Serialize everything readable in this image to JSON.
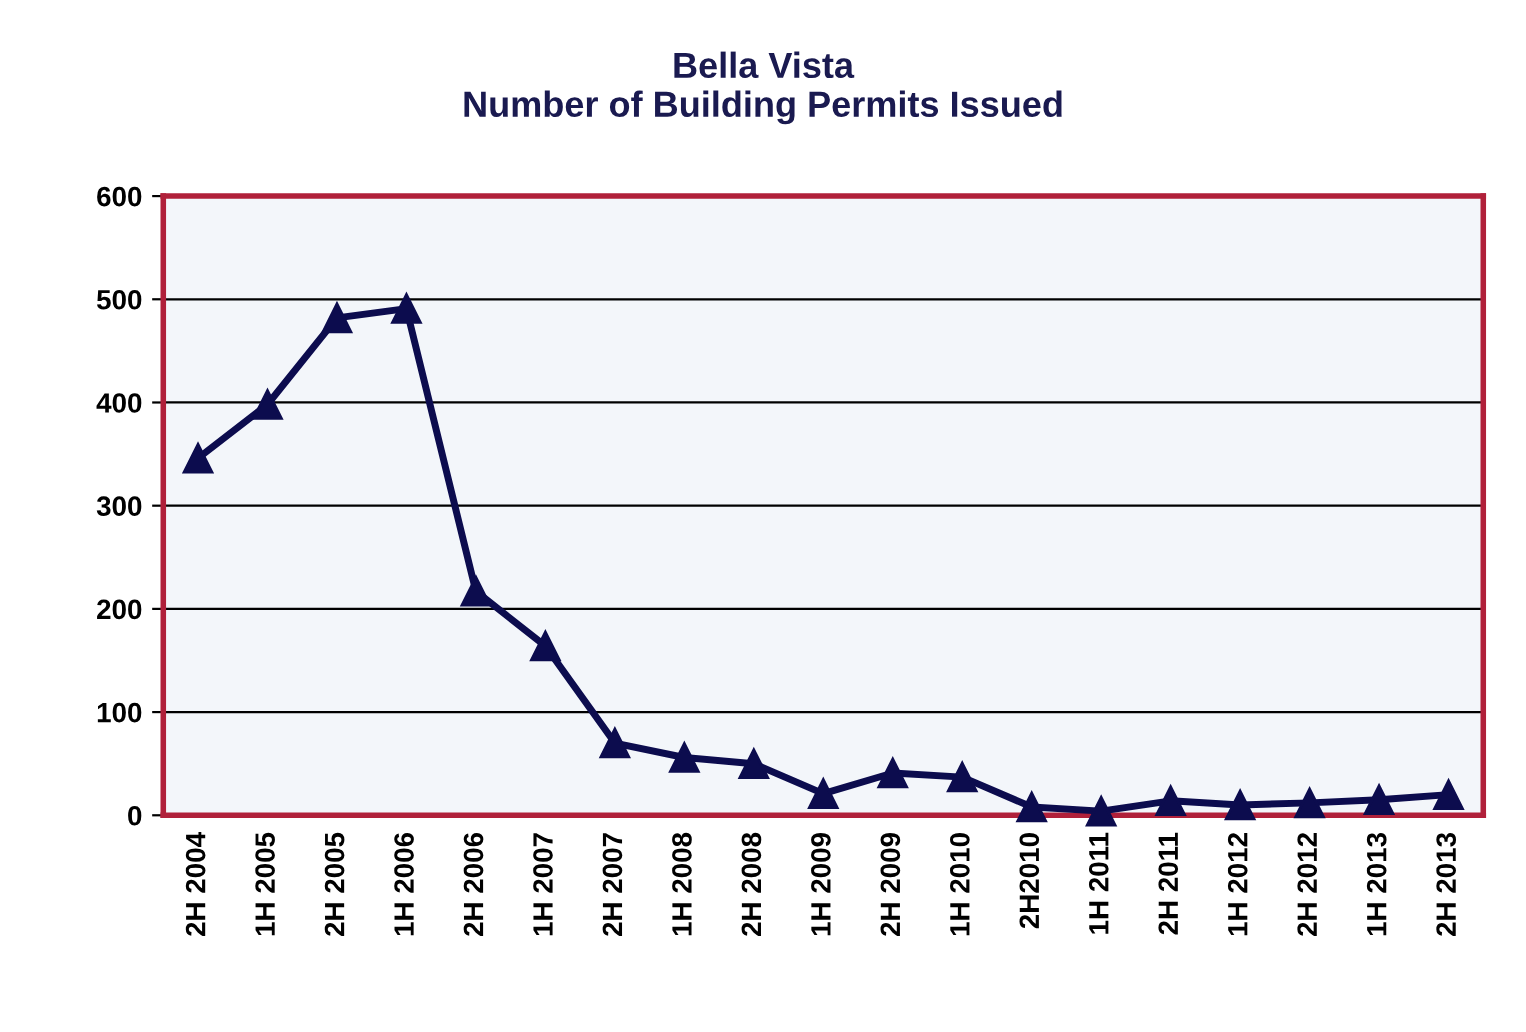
{
  "chart_data": {
    "type": "line",
    "title": "Bella Vista\nNumber of Building Permits Issued",
    "categories": [
      "2H 2004",
      "1H 2005",
      "2H 2005",
      "1H 2006",
      "2H 2006",
      "1H 2007",
      "2H 2007",
      "1H 2008",
      "2H 2008",
      "1H 2009",
      "2H 2009",
      "1H 2010",
      "2H2010",
      "1H 2011",
      "2H 2011",
      "1H 2012",
      "2H 2012",
      "1H 2013",
      "2H 2013"
    ],
    "series": [
      {
        "color": "#0c0c4e",
        "values": [
          346,
          398,
          482,
          491,
          217,
          164,
          70,
          56,
          50,
          21,
          41,
          37,
          8,
          4,
          14,
          10,
          12,
          15,
          20
        ]
      }
    ],
    "ylim": [
      0,
      600
    ],
    "yticks": [
      0,
      100,
      200,
      300,
      400,
      500,
      600
    ],
    "grid": "y",
    "marker": "triangle",
    "line_style": "solid",
    "legend": false
  }
}
